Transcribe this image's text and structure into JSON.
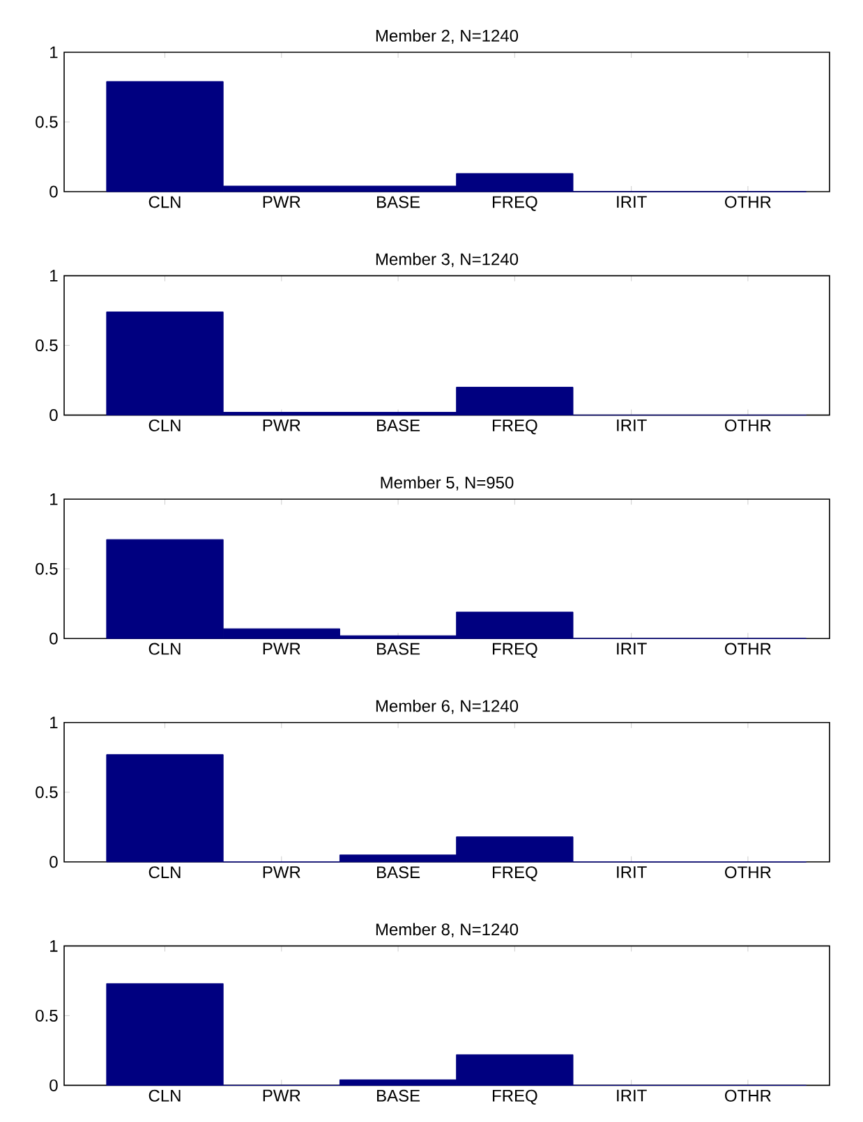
{
  "chart_data": [
    {
      "type": "bar",
      "title": "Member 2, N=1240",
      "categories": [
        "CLN",
        "PWR",
        "BASE",
        "FREQ",
        "IRIT",
        "OTHR"
      ],
      "values": [
        0.79,
        0.04,
        0.04,
        0.13,
        0,
        0
      ],
      "color": "#000080",
      "ylim": [
        0,
        1
      ],
      "yticks": [
        0,
        0.5,
        1
      ]
    },
    {
      "type": "bar",
      "title": "Member 3, N=1240",
      "categories": [
        "CLN",
        "PWR",
        "BASE",
        "FREQ",
        "IRIT",
        "OTHR"
      ],
      "values": [
        0.74,
        0.02,
        0.02,
        0.2,
        0,
        0
      ],
      "color": "#000080",
      "ylim": [
        0,
        1
      ],
      "yticks": [
        0,
        0.5,
        1
      ]
    },
    {
      "type": "bar",
      "title": "Member 5, N=950",
      "categories": [
        "CLN",
        "PWR",
        "BASE",
        "FREQ",
        "IRIT",
        "OTHR"
      ],
      "values": [
        0.71,
        0.07,
        0.02,
        0.19,
        0,
        0
      ],
      "color": "#000080",
      "ylim": [
        0,
        1
      ],
      "yticks": [
        0,
        0.5,
        1
      ]
    },
    {
      "type": "bar",
      "title": "Member 6, N=1240",
      "categories": [
        "CLN",
        "PWR",
        "BASE",
        "FREQ",
        "IRIT",
        "OTHR"
      ],
      "values": [
        0.77,
        0,
        0.05,
        0.18,
        0,
        0
      ],
      "color": "#000080",
      "ylim": [
        0,
        1
      ],
      "yticks": [
        0,
        0.5,
        1
      ]
    },
    {
      "type": "bar",
      "title": "Member 8, N=1240",
      "categories": [
        "CLN",
        "PWR",
        "BASE",
        "FREQ",
        "IRIT",
        "OTHR"
      ],
      "values": [
        0.73,
        0,
        0.04,
        0.22,
        0,
        0
      ],
      "color": "#000080",
      "ylim": [
        0,
        1
      ],
      "yticks": [
        0,
        0.5,
        1
      ]
    }
  ]
}
